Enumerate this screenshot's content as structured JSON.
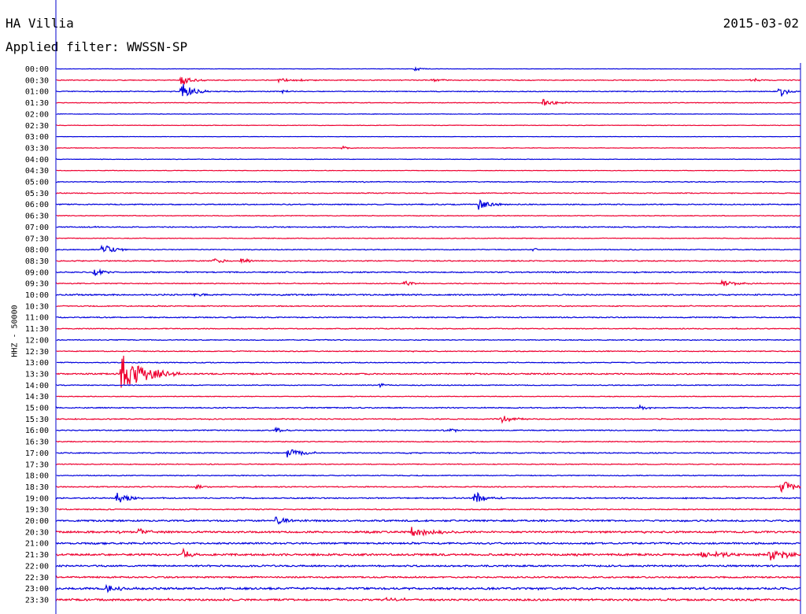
{
  "header": {
    "station": "HA Villia",
    "filter": "Applied filter: WWSSN-SP",
    "date": "2015-03-02",
    "channel": "HHZ - 50000"
  },
  "colors": {
    "blue": "#0000dd",
    "red": "#ee0030"
  },
  "chart_data": {
    "type": "line",
    "title": "HA Villia",
    "subtitle": "Applied filter: WWSSN-SP",
    "ylabel": "HHZ - 50000",
    "row_labels": [
      "00:00",
      "00:30",
      "01:00",
      "01:30",
      "02:00",
      "02:30",
      "03:00",
      "03:30",
      "04:00",
      "04:30",
      "05:00",
      "05:30",
      "06:00",
      "06:30",
      "07:00",
      "07:30",
      "08:00",
      "08:30",
      "09:00",
      "09:30",
      "10:00",
      "10:30",
      "11:00",
      "11:30",
      "12:00",
      "12:30",
      "13:00",
      "13:30",
      "14:00",
      "14:30",
      "15:00",
      "15:30",
      "16:00",
      "16:30",
      "17:00",
      "17:30",
      "18:00",
      "18:30",
      "19:00",
      "19:30",
      "20:00",
      "20:30",
      "21:00",
      "21:30",
      "22:00",
      "22:30",
      "23:00",
      "23:30"
    ],
    "row_colors": [
      "blue",
      "red"
    ],
    "row_duration_min": 30,
    "noise_level": [
      0.2,
      0.5,
      0.5,
      0.4,
      0.3,
      0.3,
      0.2,
      0.3,
      0.3,
      0.3,
      0.5,
      0.5,
      0.6,
      0.4,
      0.6,
      0.4,
      0.5,
      0.6,
      0.7,
      0.5,
      0.8,
      0.6,
      0.6,
      0.5,
      0.5,
      0.5,
      0.5,
      0.8,
      0.5,
      0.4,
      0.6,
      0.6,
      0.6,
      0.5,
      0.6,
      0.5,
      0.5,
      0.6,
      0.7,
      0.6,
      1.0,
      1.1,
      1.0,
      1.2,
      1.0,
      0.9,
      1.2,
      1.1
    ],
    "events": [
      {
        "row": 0,
        "minute": 14.4,
        "amp": 3,
        "dur": 0.8
      },
      {
        "row": 1,
        "minute": 5.0,
        "amp": 9,
        "dur": 1.0
      },
      {
        "row": 1,
        "minute": 8.9,
        "amp": 3,
        "dur": 2.2
      },
      {
        "row": 1,
        "minute": 15.1,
        "amp": 3,
        "dur": 0.8
      },
      {
        "row": 1,
        "minute": 28.0,
        "amp": 3,
        "dur": 1.0
      },
      {
        "row": 2,
        "minute": 5.0,
        "amp": 13,
        "dur": 1.2
      },
      {
        "row": 2,
        "minute": 9.1,
        "amp": 3,
        "dur": 0.5
      },
      {
        "row": 2,
        "minute": 29.1,
        "amp": 10,
        "dur": 0.8
      },
      {
        "row": 3,
        "minute": 19.6,
        "amp": 5,
        "dur": 1.2
      },
      {
        "row": 7,
        "minute": 11.5,
        "amp": 4,
        "dur": 0.6
      },
      {
        "row": 12,
        "minute": 17.0,
        "amp": 7,
        "dur": 1.2
      },
      {
        "row": 16,
        "minute": 1.8,
        "amp": 8,
        "dur": 1.2
      },
      {
        "row": 16,
        "minute": 19.2,
        "amp": 3,
        "dur": 0.5
      },
      {
        "row": 17,
        "minute": 6.3,
        "amp": 4,
        "dur": 1.0
      },
      {
        "row": 17,
        "minute": 7.4,
        "amp": 4,
        "dur": 1.0
      },
      {
        "row": 18,
        "minute": 1.4,
        "amp": 7,
        "dur": 1.0
      },
      {
        "row": 19,
        "minute": 14.0,
        "amp": 4,
        "dur": 1.0
      },
      {
        "row": 19,
        "minute": 26.8,
        "amp": 4,
        "dur": 1.6
      },
      {
        "row": 20,
        "minute": 5.5,
        "amp": 2,
        "dur": 1.0
      },
      {
        "row": 27,
        "minute": 2.6,
        "amp": 28,
        "dur": 2.4
      },
      {
        "row": 28,
        "minute": 13.0,
        "amp": 3,
        "dur": 0.6
      },
      {
        "row": 30,
        "minute": 23.5,
        "amp": 3,
        "dur": 1.0
      },
      {
        "row": 31,
        "minute": 17.9,
        "amp": 6,
        "dur": 1.2
      },
      {
        "row": 32,
        "minute": 8.8,
        "amp": 4,
        "dur": 0.8
      },
      {
        "row": 32,
        "minute": 15.6,
        "amp": 5,
        "dur": 1.0
      },
      {
        "row": 34,
        "minute": 9.3,
        "amp": 6,
        "dur": 1.6
      },
      {
        "row": 37,
        "minute": 5.6,
        "amp": 3,
        "dur": 1.0
      },
      {
        "row": 37,
        "minute": 29.2,
        "amp": 10,
        "dur": 1.2
      },
      {
        "row": 38,
        "minute": 2.4,
        "amp": 8,
        "dur": 1.2
      },
      {
        "row": 38,
        "minute": 16.8,
        "amp": 9,
        "dur": 1.2
      },
      {
        "row": 40,
        "minute": 8.8,
        "amp": 6,
        "dur": 1.4
      },
      {
        "row": 41,
        "minute": 3.3,
        "amp": 5,
        "dur": 1.2
      },
      {
        "row": 41,
        "minute": 14.3,
        "amp": 8,
        "dur": 1.8
      },
      {
        "row": 43,
        "minute": 5.1,
        "amp": 10,
        "dur": 0.6
      },
      {
        "row": 43,
        "minute": 26.0,
        "amp": 4,
        "dur": 3.0
      },
      {
        "row": 43,
        "minute": 28.7,
        "amp": 9,
        "dur": 2.0
      },
      {
        "row": 46,
        "minute": 2.0,
        "amp": 6,
        "dur": 1.4
      },
      {
        "row": 47,
        "minute": 13.3,
        "amp": 3,
        "dur": 1.2
      }
    ]
  }
}
